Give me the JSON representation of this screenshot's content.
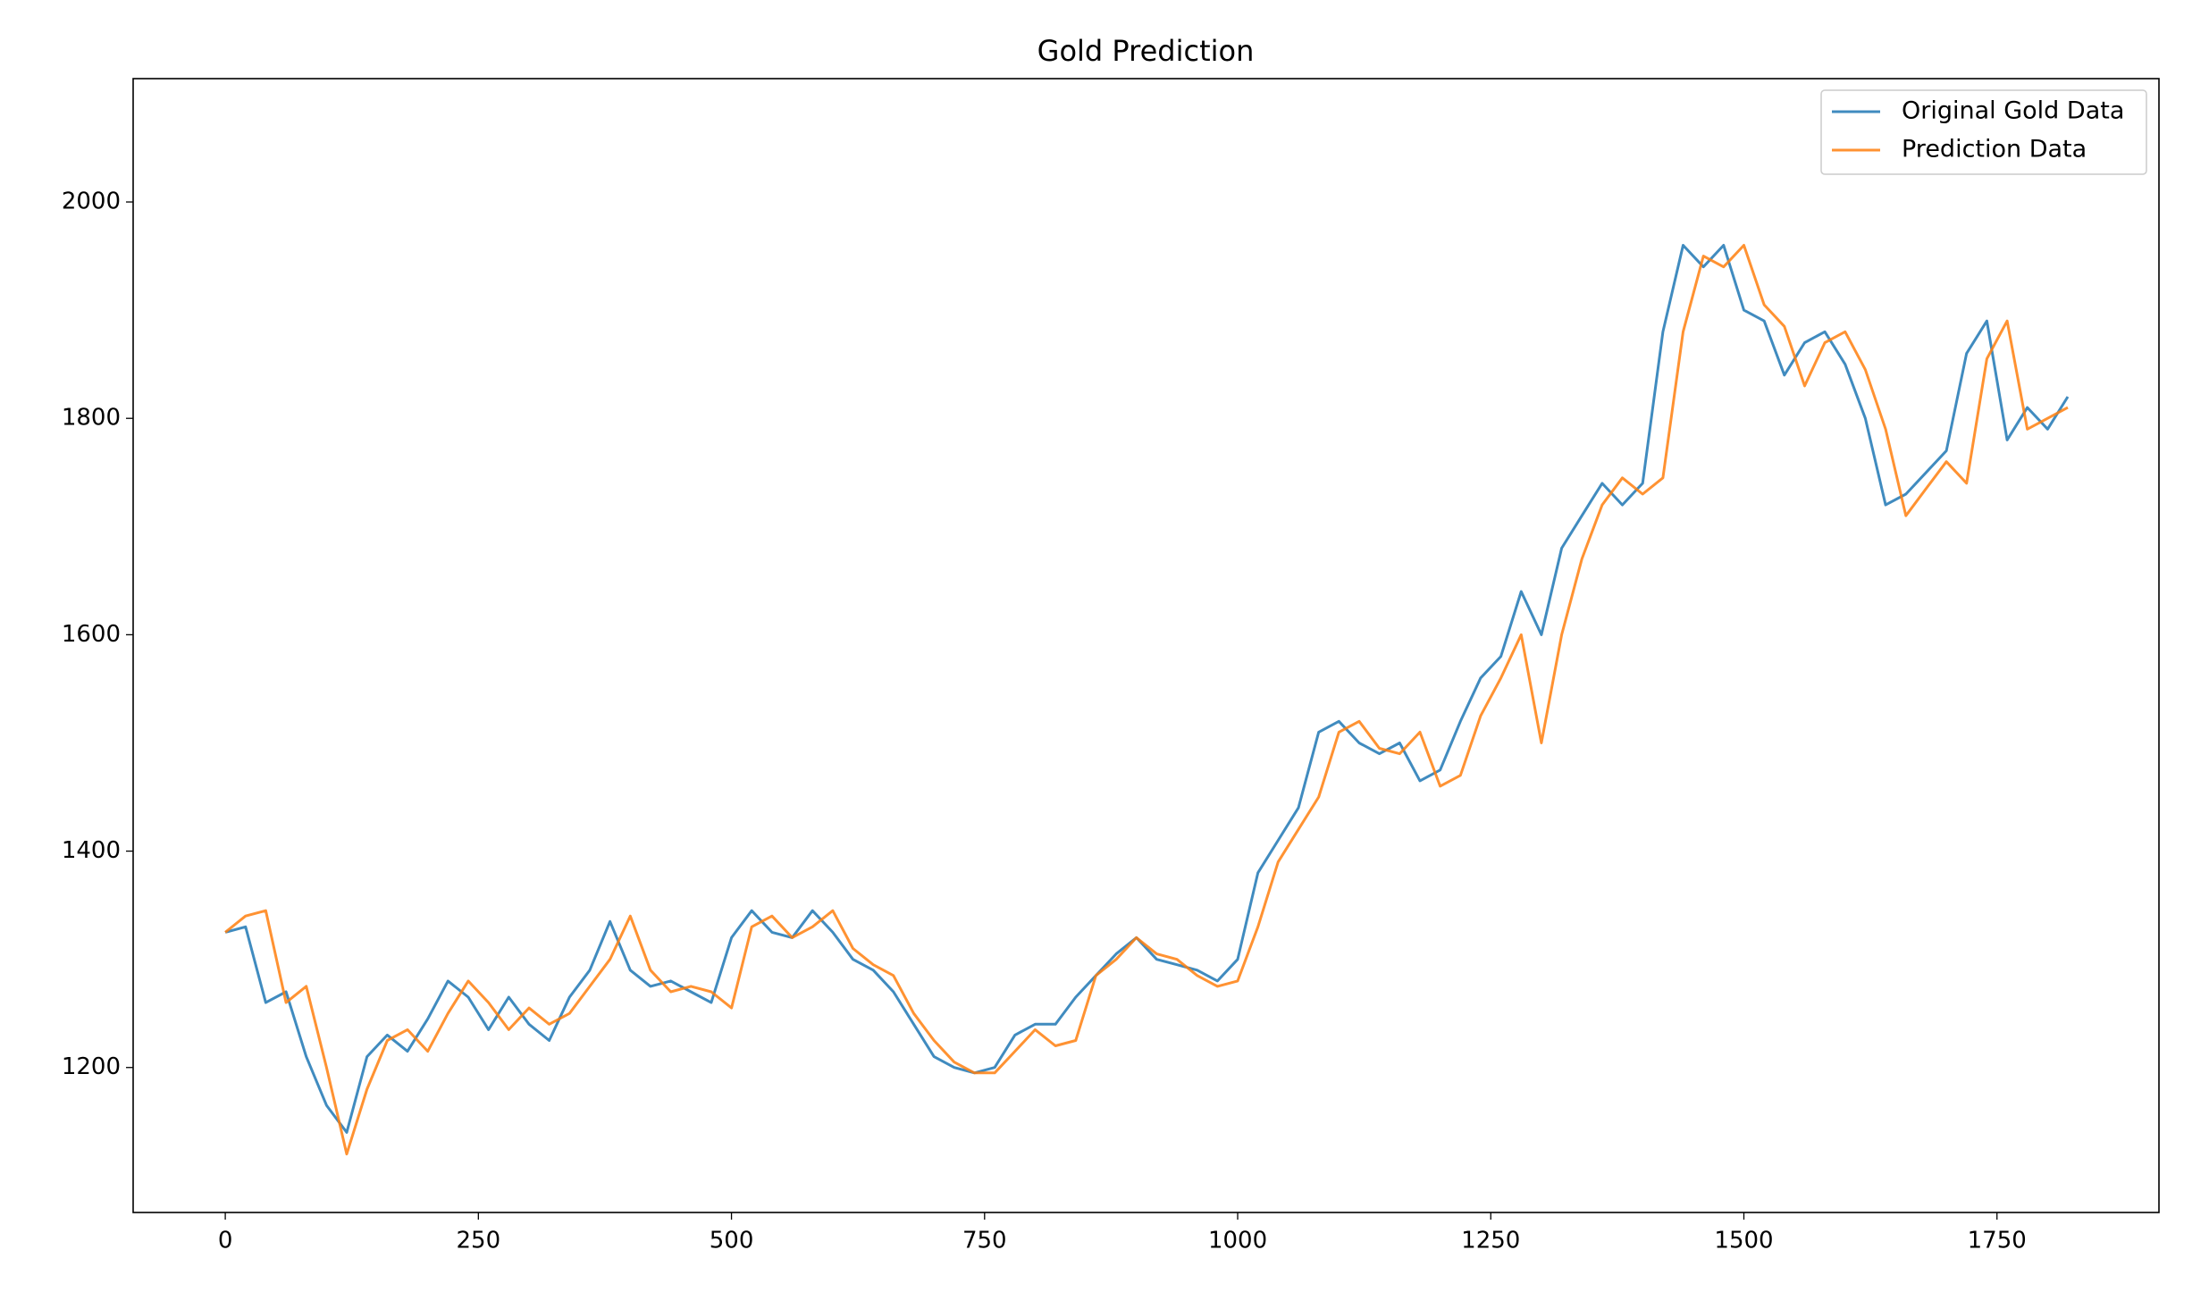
{
  "chart_data": {
    "type": "line",
    "title": "Gold Prediction",
    "x": [
      0,
      20,
      40,
      60,
      80,
      100,
      120,
      140,
      160,
      180,
      200,
      220,
      240,
      260,
      280,
      300,
      320,
      340,
      360,
      380,
      400,
      420,
      440,
      460,
      480,
      500,
      520,
      540,
      560,
      580,
      600,
      620,
      640,
      660,
      680,
      700,
      720,
      740,
      760,
      780,
      800,
      820,
      840,
      860,
      880,
      900,
      920,
      940,
      960,
      980,
      1000,
      1020,
      1040,
      1060,
      1080,
      1100,
      1120,
      1140,
      1160,
      1180,
      1200,
      1220,
      1240,
      1260,
      1280,
      1300,
      1320,
      1340,
      1360,
      1380,
      1400,
      1420,
      1440,
      1460,
      1480,
      1500,
      1520,
      1540,
      1560,
      1580,
      1600,
      1620,
      1640,
      1660,
      1680,
      1700,
      1720,
      1740,
      1760,
      1780,
      1800,
      1820
    ],
    "series": [
      {
        "name": "Original Gold Data",
        "color": "#1f77b4",
        "values": [
          1325,
          1330,
          1260,
          1270,
          1210,
          1165,
          1140,
          1210,
          1230,
          1215,
          1245,
          1280,
          1265,
          1235,
          1265,
          1240,
          1225,
          1265,
          1290,
          1335,
          1290,
          1275,
          1280,
          1270,
          1260,
          1320,
          1345,
          1325,
          1320,
          1345,
          1325,
          1300,
          1290,
          1270,
          1240,
          1210,
          1200,
          1195,
          1200,
          1230,
          1240,
          1240,
          1265,
          1285,
          1305,
          1320,
          1300,
          1295,
          1290,
          1280,
          1300,
          1380,
          1410,
          1440,
          1510,
          1520,
          1500,
          1490,
          1500,
          1465,
          1475,
          1520,
          1560,
          1580,
          1640,
          1600,
          1680,
          1710,
          1740,
          1720,
          1740,
          1880,
          1960,
          1940,
          1960,
          1900,
          1890,
          1840,
          1870,
          1880,
          1850,
          1800,
          1720,
          1730,
          1750,
          1770,
          1860,
          1890,
          1780,
          1810,
          1790,
          1820
        ]
      },
      {
        "name": "Prediction Data",
        "color": "#ff7f0e",
        "values": [
          1325,
          1340,
          1345,
          1260,
          1275,
          1200,
          1120,
          1180,
          1225,
          1235,
          1215,
          1250,
          1280,
          1260,
          1235,
          1255,
          1240,
          1250,
          1275,
          1300,
          1340,
          1290,
          1270,
          1275,
          1270,
          1255,
          1330,
          1340,
          1320,
          1330,
          1345,
          1310,
          1295,
          1285,
          1250,
          1225,
          1205,
          1195,
          1195,
          1215,
          1235,
          1220,
          1225,
          1285,
          1300,
          1320,
          1305,
          1300,
          1285,
          1275,
          1280,
          1330,
          1390,
          1420,
          1450,
          1510,
          1520,
          1495,
          1490,
          1510,
          1460,
          1470,
          1525,
          1560,
          1600,
          1500,
          1600,
          1670,
          1720,
          1745,
          1730,
          1745,
          1880,
          1950,
          1940,
          1960,
          1905,
          1885,
          1830,
          1870,
          1880,
          1845,
          1790,
          1710,
          1735,
          1760,
          1740,
          1855,
          1890,
          1790,
          1800,
          1810
        ]
      }
    ],
    "xlim": [
      -91,
      1910
    ],
    "ylim": [
      1066,
      2114
    ],
    "xticks": [
      0,
      250,
      500,
      750,
      1000,
      1250,
      1500,
      1750
    ],
    "yticks": [
      1200,
      1400,
      1600,
      1800,
      2000
    ],
    "legend": "upper right",
    "grid": false
  }
}
